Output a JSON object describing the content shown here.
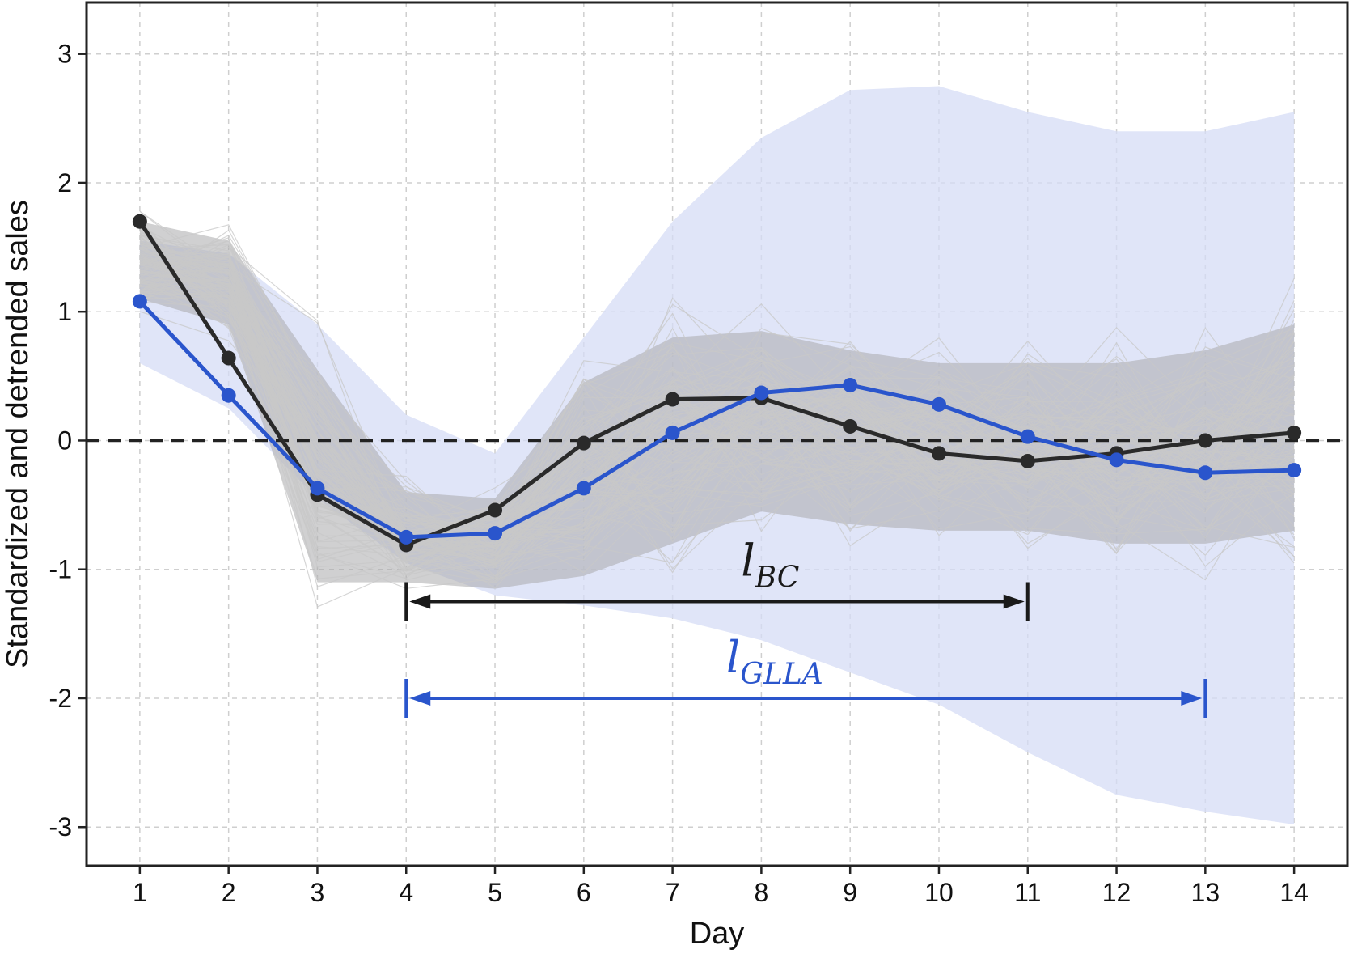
{
  "chart_data": {
    "type": "line",
    "xlabel": "Day",
    "ylabel": "Standardized and detrended sales",
    "x": [
      1,
      2,
      3,
      4,
      5,
      6,
      7,
      8,
      9,
      10,
      11,
      12,
      13,
      14
    ],
    "xlim": [
      0.4,
      14.6
    ],
    "ylim": [
      -3.3,
      3.4
    ],
    "xticks": [
      "1",
      "2",
      "3",
      "4",
      "5",
      "6",
      "7",
      "8",
      "9",
      "10",
      "11",
      "12",
      "13",
      "14"
    ],
    "yticks": [
      {
        "value": 3,
        "label": "3"
      },
      {
        "value": 2,
        "label": "2"
      },
      {
        "value": 1,
        "label": "1"
      },
      {
        "value": 0,
        "label": "0"
      },
      {
        "value": -1,
        "label": "-1"
      },
      {
        "value": -2,
        "label": "-2"
      },
      {
        "value": -3,
        "label": "-3"
      }
    ],
    "grid": true,
    "zero_line": {
      "y": 0,
      "style": "dashed",
      "color": "#222222"
    },
    "series": [
      {
        "color": "#2a2a2a",
        "values": [
          1.7,
          0.64,
          -0.42,
          -0.81,
          -0.54,
          -0.02,
          0.32,
          0.33,
          0.11,
          -0.1,
          -0.16,
          -0.1,
          0.0,
          0.06
        ]
      },
      {
        "color": "#2a55cc",
        "values": [
          1.08,
          0.35,
          -0.37,
          -0.75,
          -0.72,
          -0.37,
          0.06,
          0.37,
          0.43,
          0.28,
          0.03,
          -0.15,
          -0.25,
          -0.23
        ]
      }
    ],
    "bands": [
      {
        "color": "#d6dcf6",
        "upper": [
          1.55,
          1.45,
          0.9,
          0.2,
          -0.1,
          0.8,
          1.7,
          2.35,
          2.72,
          2.75,
          2.55,
          2.4,
          2.4,
          2.55
        ],
        "lower": [
          0.6,
          0.25,
          -0.45,
          -0.95,
          -1.2,
          -1.28,
          -1.38,
          -1.55,
          -1.8,
          -2.05,
          -2.42,
          -2.75,
          -2.88,
          -2.98
        ]
      },
      {
        "color": "#a9a9ab",
        "upper": [
          1.7,
          1.55,
          0.55,
          -0.4,
          -0.45,
          0.45,
          0.8,
          0.85,
          0.7,
          0.6,
          0.6,
          0.6,
          0.7,
          0.9
        ],
        "lower": [
          1.1,
          0.9,
          -1.1,
          -1.1,
          -1.15,
          -1.05,
          -0.8,
          -0.55,
          -0.65,
          -0.7,
          -0.7,
          -0.8,
          -0.8,
          -0.7
        ]
      }
    ],
    "background_lines": {
      "color": "#c8c8c8",
      "count": 110,
      "seed": 7
    },
    "annotations": [
      {
        "label": "l",
        "subscript": "BC",
        "color": "#1a1a1a",
        "x_start": 4,
        "x_end": 11,
        "y": -1.25,
        "label_x": 8.1,
        "label_y": -1.05
      },
      {
        "label": "l",
        "subscript": "GLLA",
        "color": "#2a55cc",
        "x_start": 4,
        "x_end": 13,
        "y": -2.0,
        "label_x": 8.15,
        "label_y": -1.8
      }
    ]
  }
}
